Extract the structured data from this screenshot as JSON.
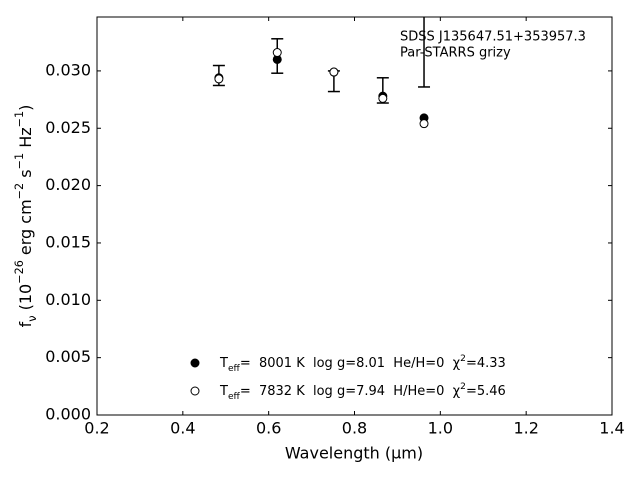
{
  "chart_data": {
    "type": "scatter",
    "xlabel": "Wavelength (μm)",
    "ylabel": "fν (10−26 erg cm−2 s−1 Hz−1)",
    "annotations": [
      "SDSS J135647.51+353957.3",
      "Par-STARRS grizy"
    ],
    "x": [
      0.484,
      0.62,
      0.752,
      0.866,
      0.962
    ],
    "series": [
      {
        "values": [
          0.0296,
          0.0313,
          0.0291,
          0.0283,
          0.0322
        ],
        "errors": [
          0.00087,
          0.0015,
          0.0009,
          0.0011,
          0.0036
        ],
        "color": "#000000",
        "marker": "errorbar"
      },
      {
        "name": "Teff=  8001 K  log g=8.01  He/H=0  χ2=4.33",
        "values": [
          0.0294,
          0.031,
          0.0299,
          0.0278,
          0.0259
        ],
        "color": "#000000",
        "marker": "filled"
      },
      {
        "name": "Teff=  7832 K  log g=7.94  H/He=0  χ2=5.46",
        "values": [
          0.0293,
          0.0316,
          0.0299,
          0.0276,
          0.0254
        ],
        "color": "#000000",
        "marker": "open"
      }
    ],
    "xlim": [
      0.2,
      1.4
    ],
    "xticks": [
      0.2,
      0.4,
      0.6,
      0.8,
      {
        "value": 1,
        "label": "1.0"
      },
      1.2,
      1.4
    ],
    "ylim": [
      0,
      0.0347
    ],
    "yticks": [
      {
        "value": 0,
        "label": "0.000"
      },
      0.005,
      {
        "value": 0.01,
        "label": "0.010"
      },
      0.015,
      {
        "value": 0.02,
        "label": "0.020"
      },
      0.025,
      {
        "value": 0.03,
        "label": "0.030"
      }
    ],
    "legend": "lower center"
  }
}
